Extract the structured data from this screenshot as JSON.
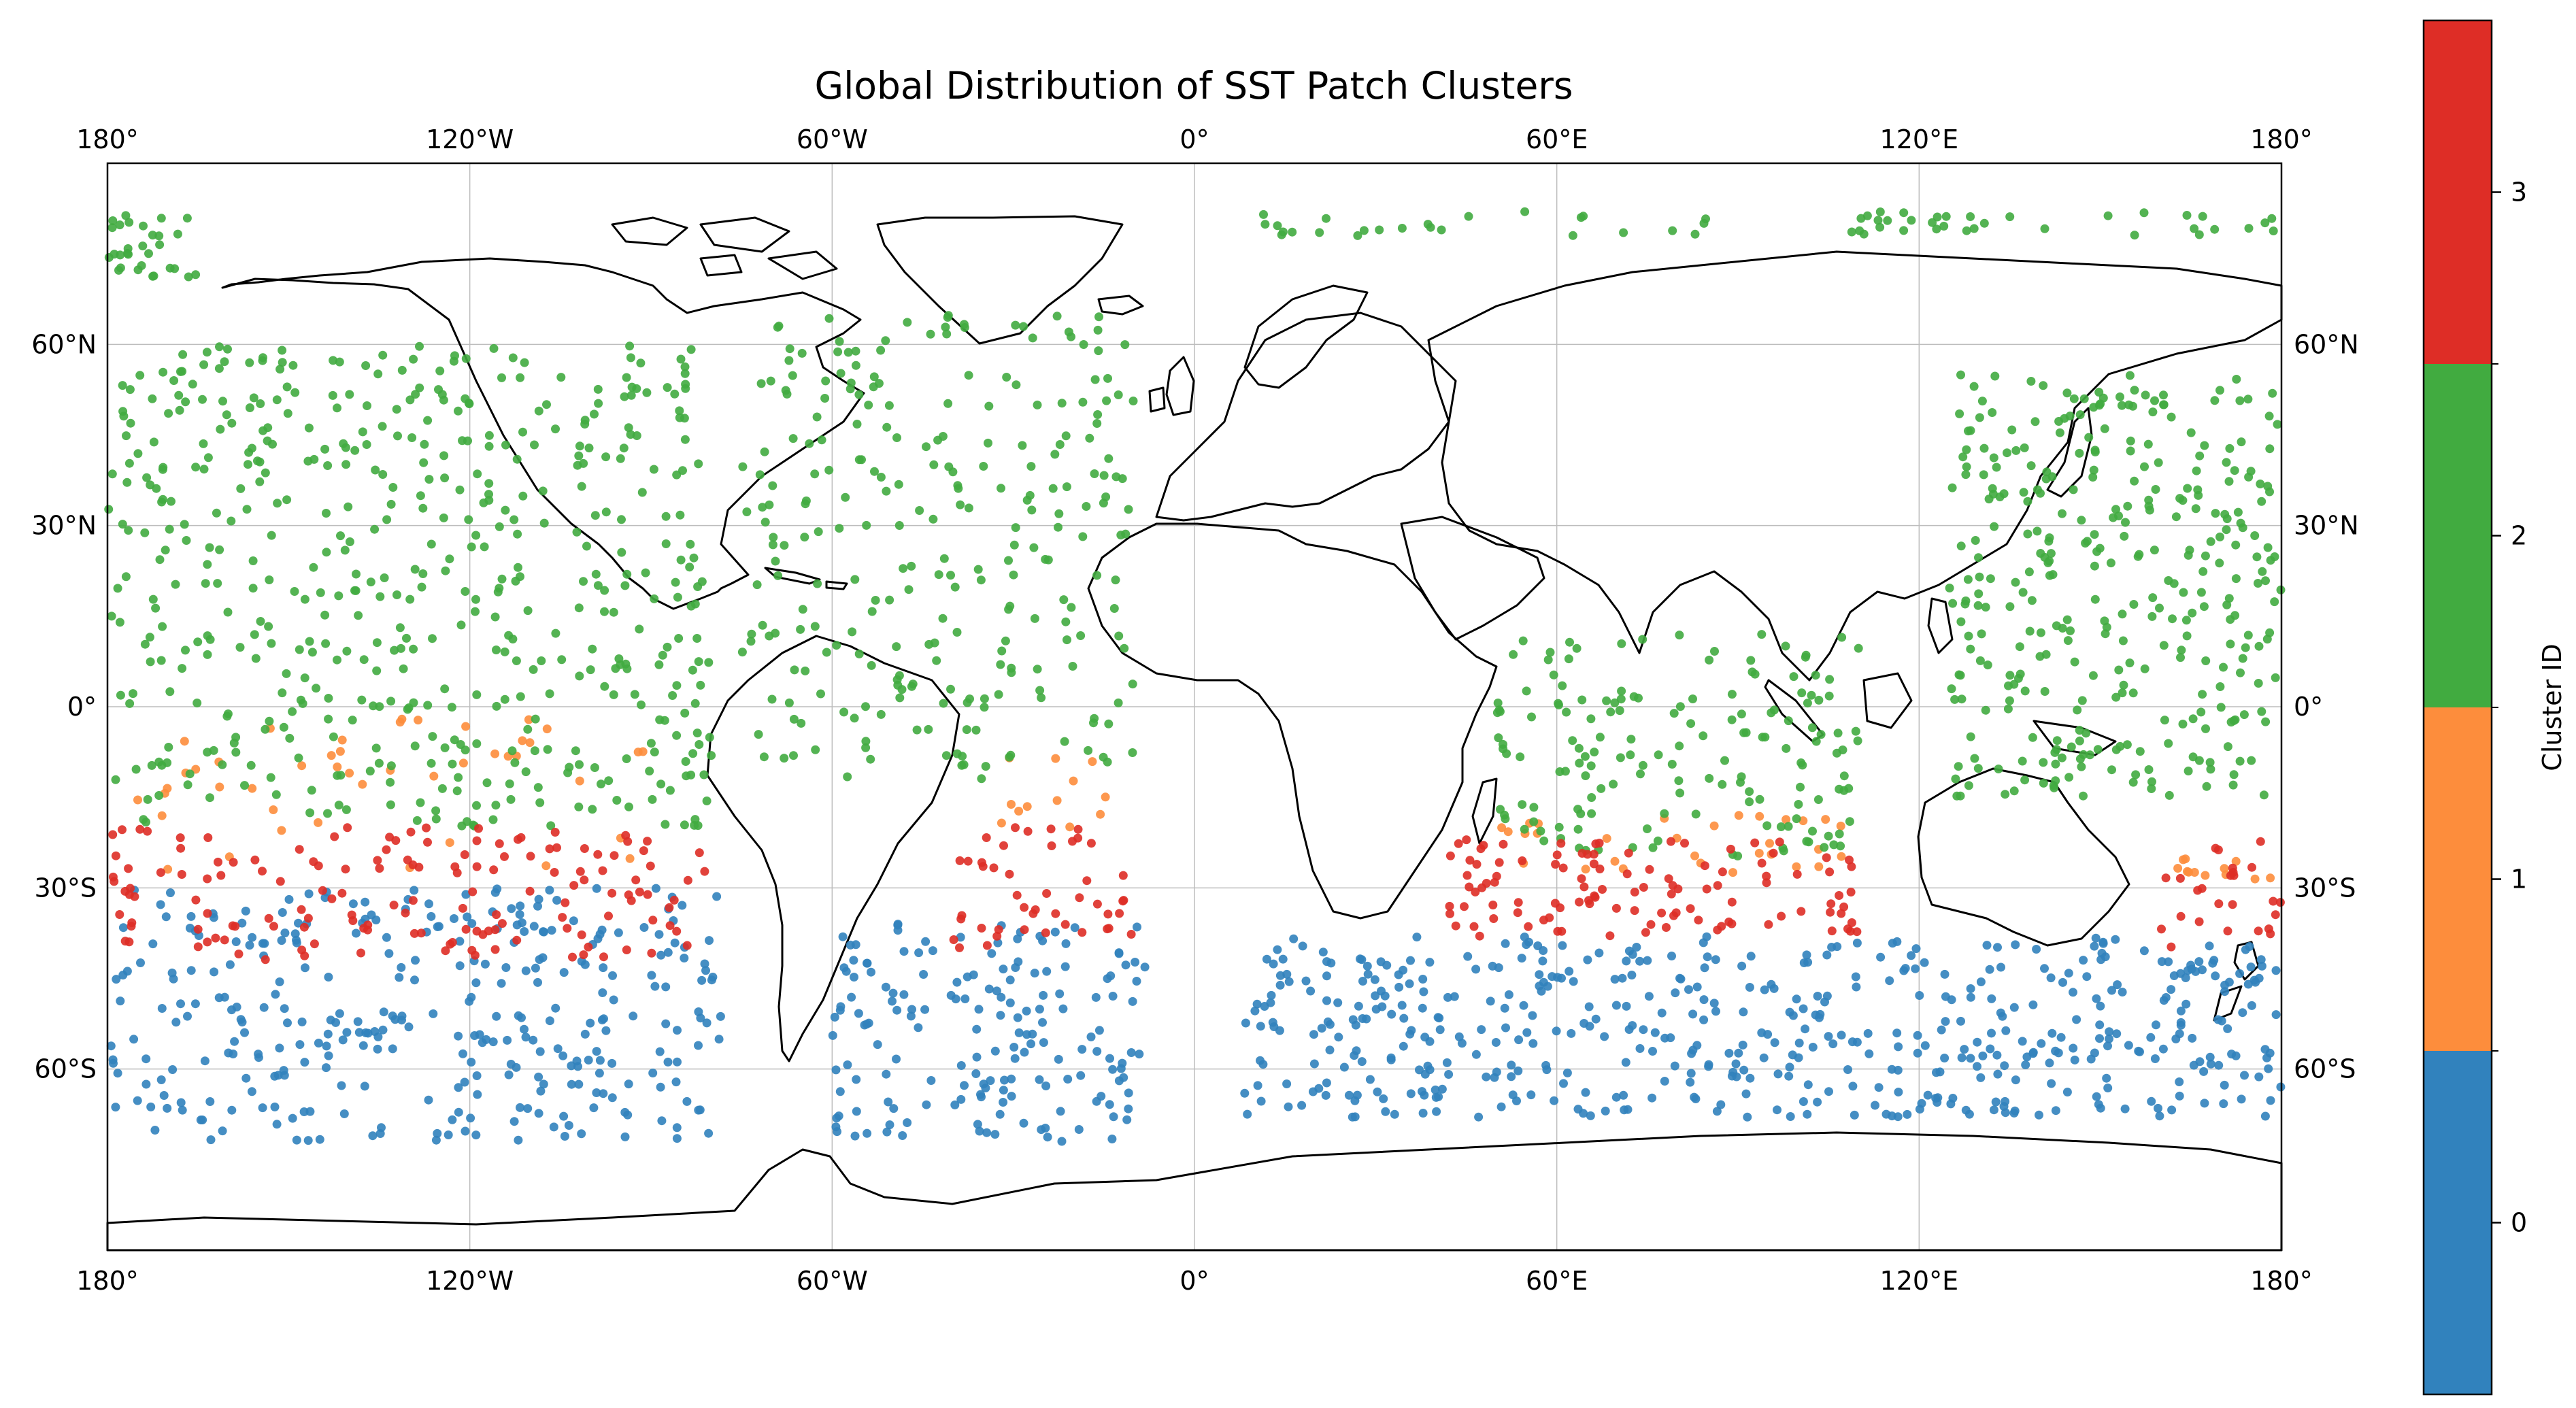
{
  "chart_data": {
    "type": "scatter",
    "title": "Global Distribution of SST Patch Clusters",
    "projection": "PlateCarree",
    "xlim": [
      -180,
      180
    ],
    "ylim": [
      -90,
      90
    ],
    "grid": true,
    "x_ticks": [
      -180,
      -120,
      -60,
      0,
      60,
      120,
      180
    ],
    "y_ticks": [
      60,
      30,
      0,
      -30,
      -60
    ],
    "x_tick_labels": [
      "180°",
      "120°W",
      "60°W",
      "0°",
      "60°E",
      "120°E",
      "180°"
    ],
    "y_tick_labels": [
      "60°N",
      "30°N",
      "0°",
      "30°S",
      "60°S"
    ],
    "colorbar": {
      "label": "Cluster ID",
      "ticks": [
        "0",
        "1",
        "2",
        "3"
      ],
      "colors": [
        "#3182bd",
        "#fd8d3c",
        "#41ab40",
        "#de2d26"
      ]
    },
    "series": [
      {
        "cluster": 0,
        "color": "#3182bd",
        "regions": [
          {
            "lon": [
              -180,
              -78
            ],
            "lat": [
              -72,
              -30
            ],
            "count": 330
          },
          {
            "lon": [
              -60,
              -8
            ],
            "lat": [
              -72,
              -35
            ],
            "count": 170
          },
          {
            "lon": [
              8,
              180
            ],
            "lat": [
              -68,
              -38
            ],
            "count": 520
          }
        ]
      },
      {
        "cluster": 1,
        "color": "#fd8d3c",
        "regions": [
          {
            "lon": [
              -175,
              -90
            ],
            "lat": [
              -27,
              -2
            ],
            "count": 45
          },
          {
            "lon": [
              -32,
              -12
            ],
            "lat": [
              -20,
              -8
            ],
            "count": 12
          },
          {
            "lon": [
              50,
              110
            ],
            "lat": [
              -28,
              -18
            ],
            "count": 30
          },
          {
            "lon": [
              160,
              180
            ],
            "lat": [
              -30,
              -25
            ],
            "count": 12
          }
        ]
      },
      {
        "cluster": 2,
        "color": "#41ab40",
        "regions": [
          {
            "lon": [
              -180,
              -80
            ],
            "lat": [
              -20,
              60
            ],
            "count": 520
          },
          {
            "lon": [
              -75,
              -10
            ],
            "lat": [
              -12,
              65
            ],
            "count": 260
          },
          {
            "lon": [
              -180,
              -165
            ],
            "lat": [
              70,
              82
            ],
            "count": 30
          },
          {
            "lon": [
              10,
              180
            ],
            "lat": [
              78,
              82
            ],
            "count": 60
          },
          {
            "lon": [
              50,
              110
            ],
            "lat": [
              -25,
              12
            ],
            "count": 160
          },
          {
            "lon": [
              125,
              180
            ],
            "lat": [
              -15,
              55
            ],
            "count": 340
          }
        ]
      },
      {
        "cluster": 3,
        "color": "#de2d26",
        "regions": [
          {
            "lon": [
              -180,
              -80
            ],
            "lat": [
              -42,
              -20
            ],
            "count": 150
          },
          {
            "lon": [
              -40,
              -10
            ],
            "lat": [
              -40,
              -20
            ],
            "count": 45
          },
          {
            "lon": [
              42,
              110
            ],
            "lat": [
              -38,
              -22
            ],
            "count": 110
          },
          {
            "lon": [
              160,
              180
            ],
            "lat": [
              -42,
              -22
            ],
            "count": 25
          }
        ]
      }
    ]
  }
}
